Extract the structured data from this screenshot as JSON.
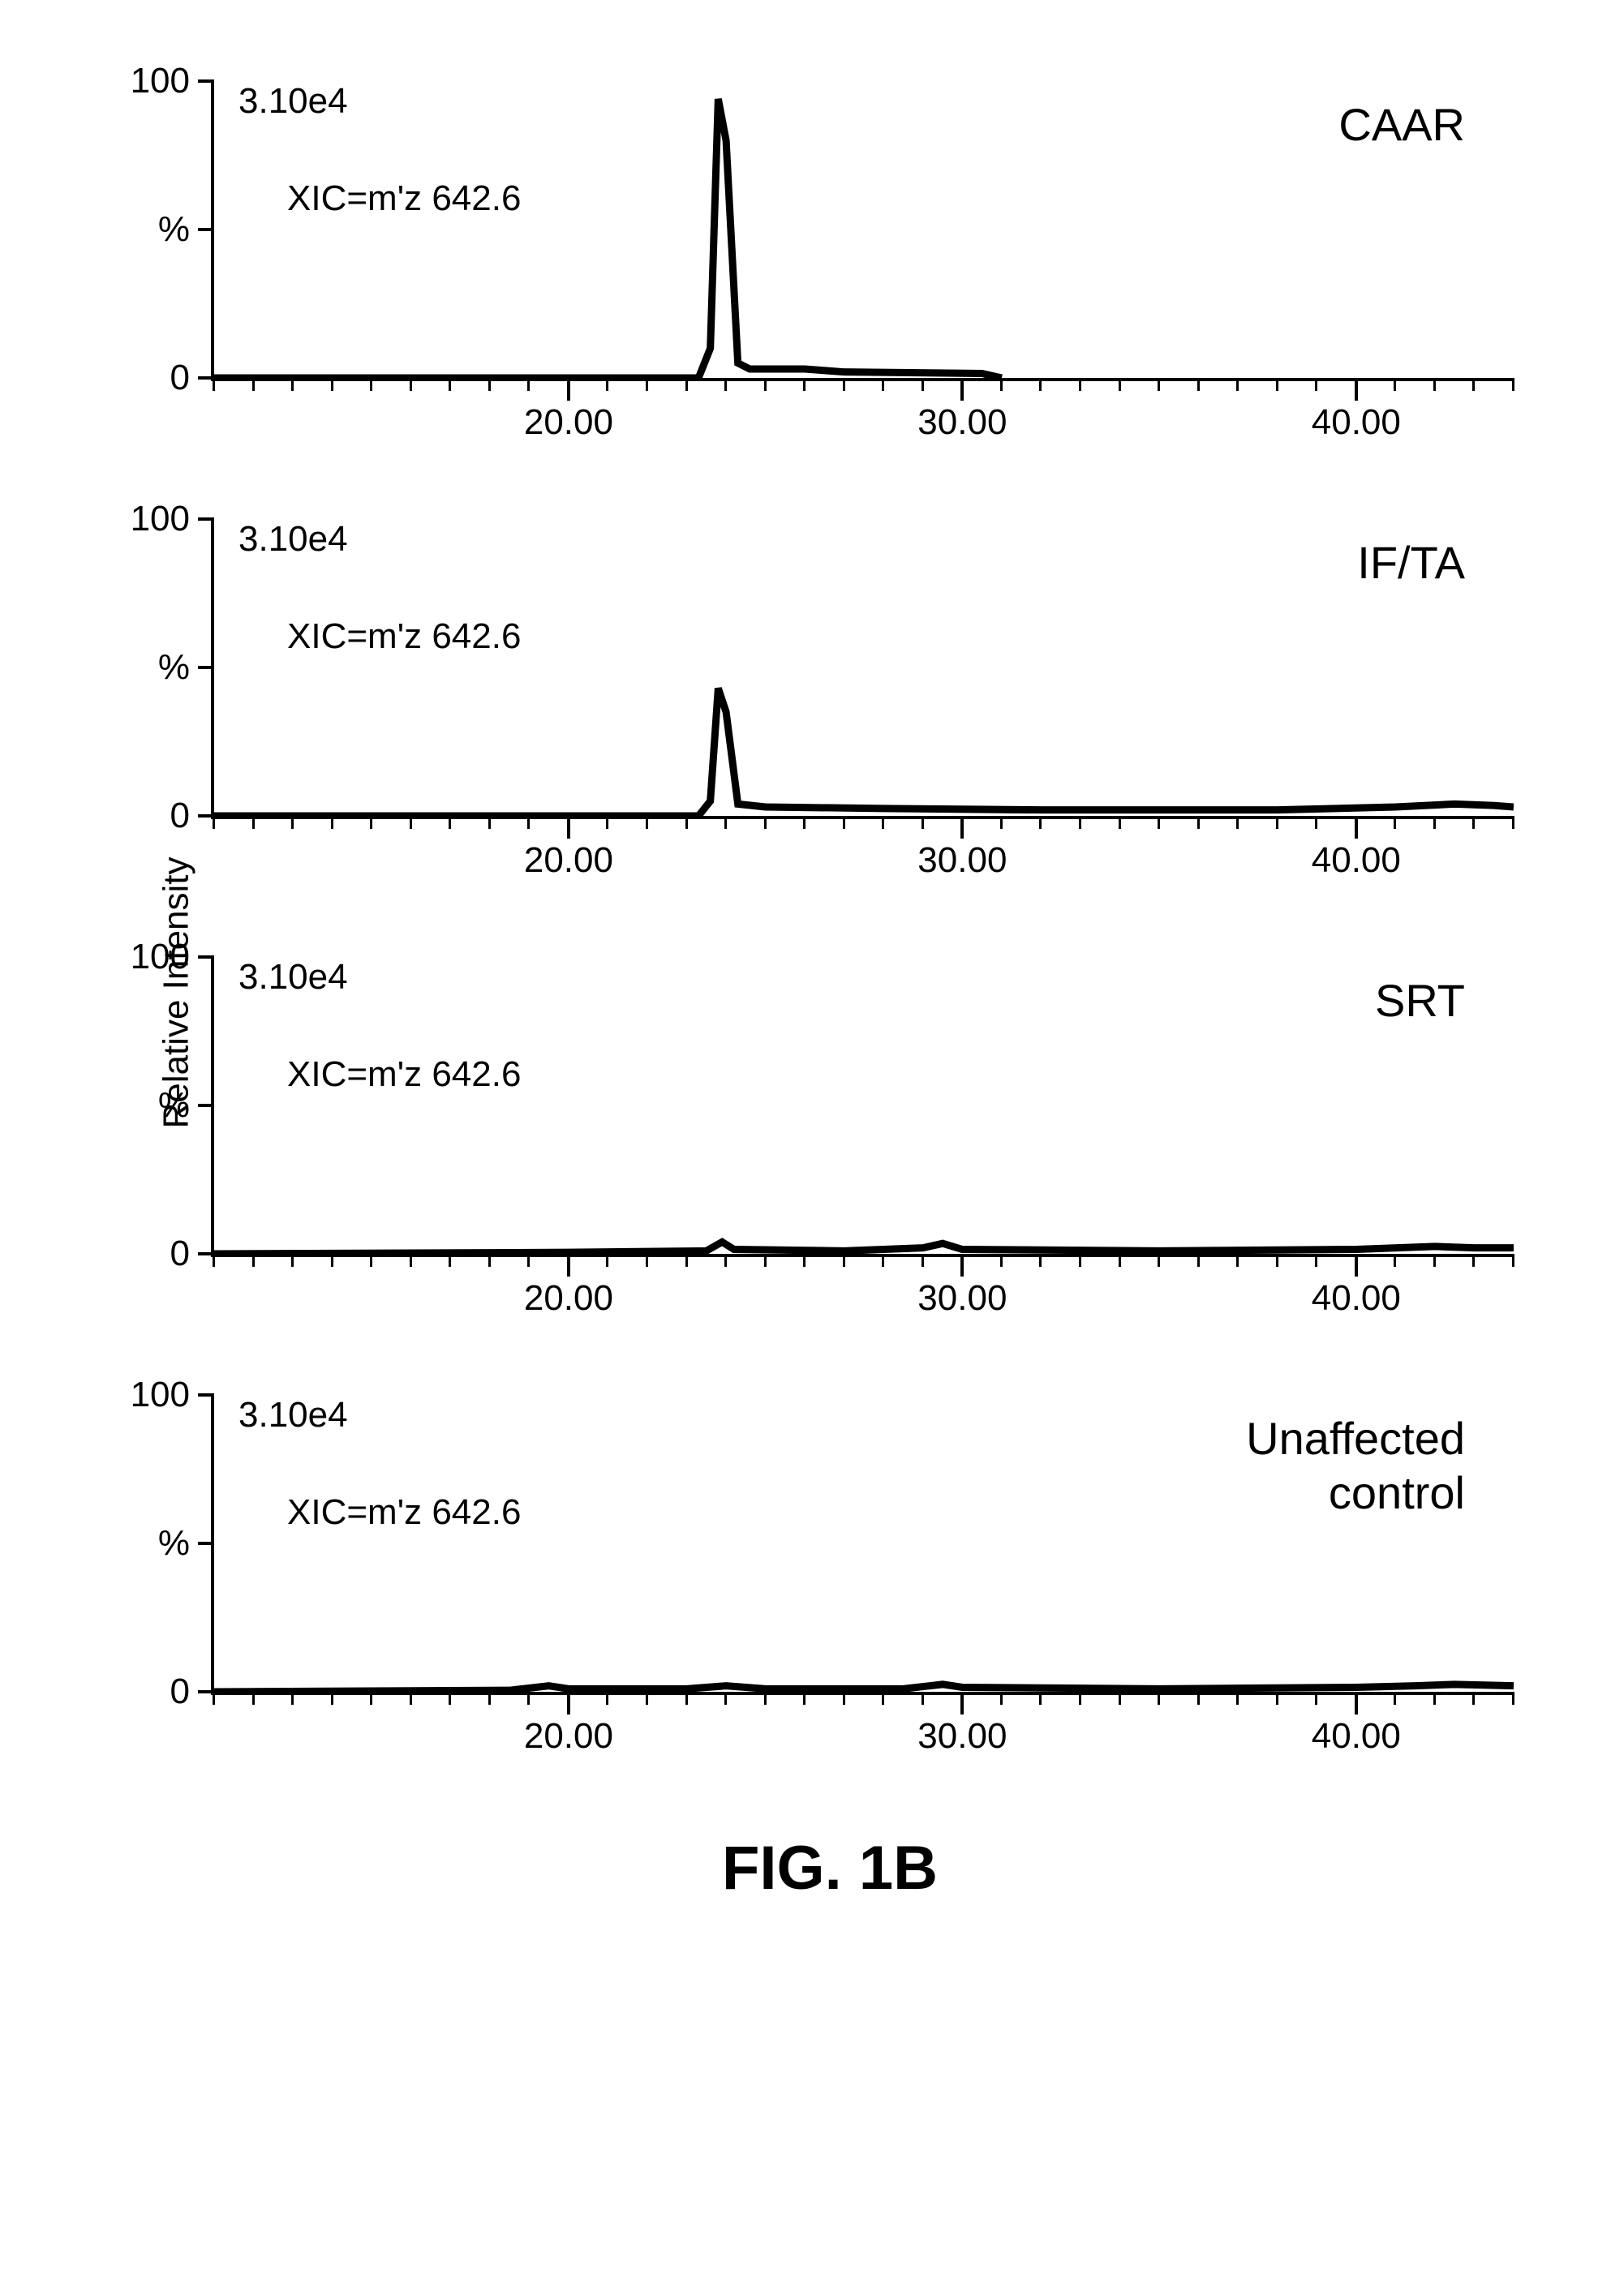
{
  "figure_caption": "FIG. 1B",
  "y_axis_global_label": "Relative Intensity",
  "axis": {
    "xlim": [
      11,
      44
    ],
    "ylim": [
      0,
      100
    ],
    "x_major_ticks": [
      20,
      30,
      40
    ],
    "x_minor_step": 1,
    "x_tick_labels": {
      "20": "20.00",
      "30": "30.00",
      "40": "40.00"
    },
    "y_ticks": [
      0,
      50,
      100
    ],
    "y_tick_labels": {
      "0": "0",
      "50": "%",
      "100": "100"
    },
    "line_color": "#000000",
    "line_width": 3,
    "tick_font_size": 44,
    "label_font_size": 44,
    "title_font_size": 56
  },
  "panels": [
    {
      "title": "CAAR",
      "intensity_label": "3.10e4",
      "xic_label": "XIC=m'z 642.6",
      "series": [
        {
          "x": 11,
          "y": 0
        },
        {
          "x": 23.3,
          "y": 0
        },
        {
          "x": 23.6,
          "y": 10
        },
        {
          "x": 23.8,
          "y": 94
        },
        {
          "x": 24.0,
          "y": 80
        },
        {
          "x": 24.3,
          "y": 5
        },
        {
          "x": 24.6,
          "y": 3
        },
        {
          "x": 26.0,
          "y": 3
        },
        {
          "x": 27.0,
          "y": 2
        },
        {
          "x": 30.5,
          "y": 1.5
        },
        {
          "x": 31,
          "y": 0
        }
      ]
    },
    {
      "title": "IF/TA",
      "intensity_label": "3.10e4",
      "xic_label": "XIC=m'z 642.6",
      "series": [
        {
          "x": 11,
          "y": 0
        },
        {
          "x": 23.3,
          "y": 0
        },
        {
          "x": 23.6,
          "y": 5
        },
        {
          "x": 23.8,
          "y": 43
        },
        {
          "x": 24.0,
          "y": 35
        },
        {
          "x": 24.3,
          "y": 4
        },
        {
          "x": 25.0,
          "y": 3
        },
        {
          "x": 28.0,
          "y": 2.5
        },
        {
          "x": 32.0,
          "y": 2
        },
        {
          "x": 38.0,
          "y": 2
        },
        {
          "x": 41.0,
          "y": 3
        },
        {
          "x": 42.5,
          "y": 4
        },
        {
          "x": 43.5,
          "y": 3.5
        },
        {
          "x": 44,
          "y": 3
        }
      ]
    },
    {
      "title": "SRT",
      "intensity_label": "3.10e4",
      "xic_label": "XIC=m'z 642.6",
      "series": [
        {
          "x": 11,
          "y": 0
        },
        {
          "x": 20,
          "y": 0.5
        },
        {
          "x": 23.5,
          "y": 1
        },
        {
          "x": 23.9,
          "y": 4
        },
        {
          "x": 24.2,
          "y": 1.5
        },
        {
          "x": 27.0,
          "y": 1
        },
        {
          "x": 29.0,
          "y": 2
        },
        {
          "x": 29.5,
          "y": 3.5
        },
        {
          "x": 30.0,
          "y": 1.5
        },
        {
          "x": 35.0,
          "y": 1
        },
        {
          "x": 40.0,
          "y": 1.5
        },
        {
          "x": 42.0,
          "y": 2.5
        },
        {
          "x": 43.0,
          "y": 2
        },
        {
          "x": 44,
          "y": 2
        }
      ]
    },
    {
      "title": "Unaffected\ncontrol",
      "intensity_label": "3.10e4",
      "xic_label": "XIC=m'z 642.6",
      "series": [
        {
          "x": 11,
          "y": 0
        },
        {
          "x": 18.5,
          "y": 0.5
        },
        {
          "x": 19.5,
          "y": 2
        },
        {
          "x": 20.0,
          "y": 1
        },
        {
          "x": 23.0,
          "y": 1
        },
        {
          "x": 24.0,
          "y": 2
        },
        {
          "x": 25.0,
          "y": 1
        },
        {
          "x": 28.5,
          "y": 1
        },
        {
          "x": 29.5,
          "y": 2.5
        },
        {
          "x": 30.0,
          "y": 1.5
        },
        {
          "x": 35.0,
          "y": 1
        },
        {
          "x": 40.0,
          "y": 1.5
        },
        {
          "x": 41.5,
          "y": 2
        },
        {
          "x": 42.5,
          "y": 2.5
        },
        {
          "x": 44,
          "y": 2
        }
      ]
    }
  ]
}
